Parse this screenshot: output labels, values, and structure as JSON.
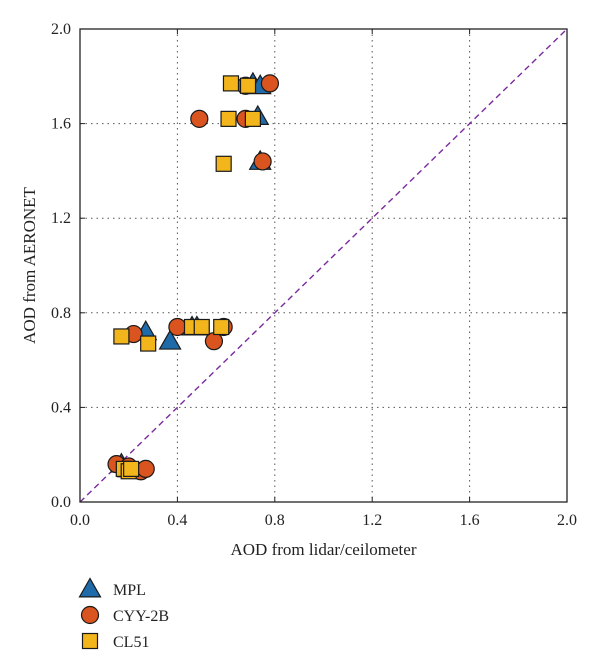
{
  "chart_data": {
    "type": "scatter",
    "xlabel": "AOD from lidar/ceilometer",
    "ylabel": "AOD from AERONET",
    "xlim": [
      0,
      2.0
    ],
    "ylim": [
      0,
      2.0
    ],
    "xticks": [
      "0.0",
      "0.4",
      "0.8",
      "1.2",
      "1.6",
      "2.0"
    ],
    "yticks": [
      "0.0",
      "0.4",
      "0.8",
      "1.2",
      "1.6",
      "2.0"
    ],
    "grid": true,
    "reference_line": "1:1 dashed",
    "legend_position": "below",
    "series": [
      {
        "name": "MPL",
        "marker": "triangle",
        "color": "#1f6aa8",
        "points": [
          [
            0.17,
            0.16
          ],
          [
            0.2,
            0.14
          ],
          [
            0.27,
            0.72
          ],
          [
            0.37,
            0.68
          ],
          [
            0.46,
            0.74
          ],
          [
            0.48,
            0.74
          ],
          [
            0.71,
            1.77
          ],
          [
            0.74,
            1.76
          ],
          [
            0.73,
            1.63
          ],
          [
            0.74,
            1.44
          ]
        ]
      },
      {
        "name": "CYY-2B",
        "marker": "circle",
        "color": "#d9541e",
        "points": [
          [
            0.15,
            0.16
          ],
          [
            0.2,
            0.15
          ],
          [
            0.25,
            0.13
          ],
          [
            0.27,
            0.14
          ],
          [
            0.22,
            0.71
          ],
          [
            0.4,
            0.74
          ],
          [
            0.55,
            0.68
          ],
          [
            0.59,
            0.74
          ],
          [
            0.49,
            1.62
          ],
          [
            0.68,
            1.62
          ],
          [
            0.68,
            1.76
          ],
          [
            0.78,
            1.77
          ],
          [
            0.75,
            1.44
          ]
        ]
      },
      {
        "name": "CL51",
        "marker": "square",
        "color": "#f2b51c",
        "points": [
          [
            0.18,
            0.14
          ],
          [
            0.2,
            0.13
          ],
          [
            0.21,
            0.14
          ],
          [
            0.17,
            0.7
          ],
          [
            0.28,
            0.67
          ],
          [
            0.46,
            0.74
          ],
          [
            0.5,
            0.74
          ],
          [
            0.58,
            0.74
          ],
          [
            0.59,
            1.43
          ],
          [
            0.61,
            1.62
          ],
          [
            0.62,
            1.77
          ],
          [
            0.69,
            1.76
          ],
          [
            0.71,
            1.62
          ]
        ]
      }
    ]
  }
}
